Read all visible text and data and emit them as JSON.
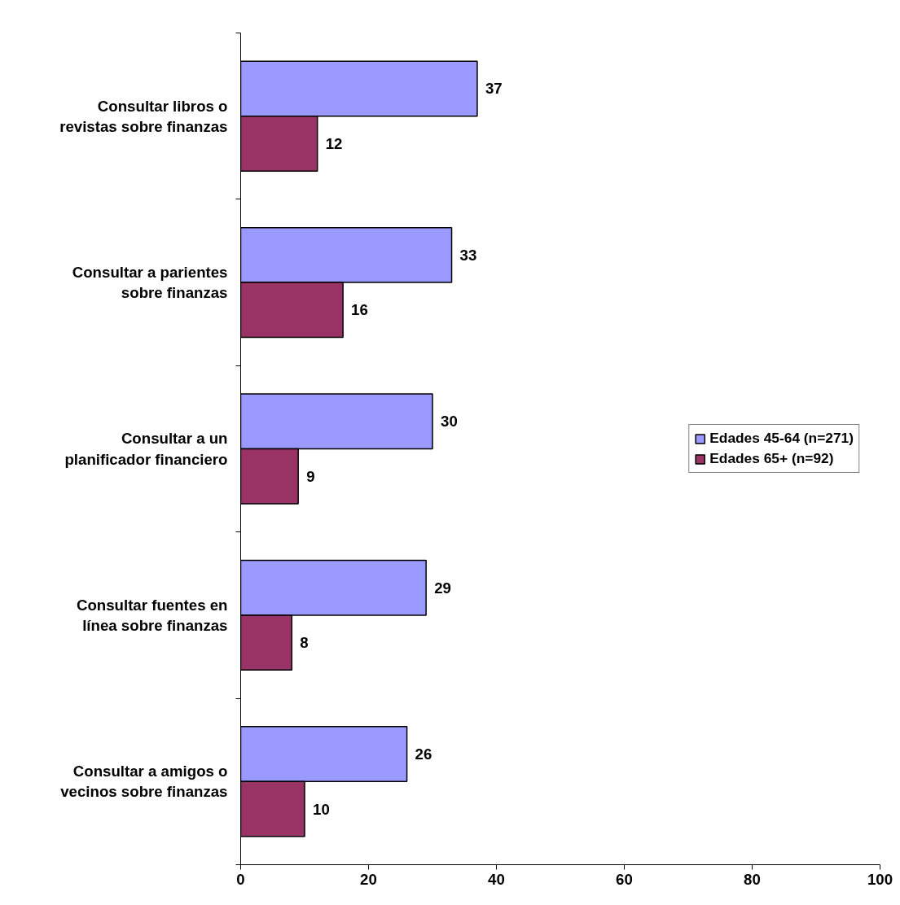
{
  "chart_data": {
    "type": "bar",
    "orientation": "horizontal",
    "categories": [
      "Consultar libros o revistas sobre finanzas",
      "Consultar a parientes sobre finanzas",
      "Consultar a un planificador financiero",
      "Consultar fuentes en línea sobre finanzas",
      "Consultar a amigos o vecinos sobre finanzas"
    ],
    "series": [
      {
        "name": "Edades 45-64 (n=271)",
        "color": "#9999ff",
        "values": [
          37,
          33,
          30,
          29,
          26
        ]
      },
      {
        "name": "Edades 65+ (n=92)",
        "color": "#993366",
        "values": [
          12,
          16,
          9,
          8,
          10
        ]
      }
    ],
    "xlim": [
      0,
      100
    ],
    "xticks": [
      0,
      20,
      40,
      60,
      80,
      100
    ],
    "data_labels": true,
    "legend": "right",
    "grid": false
  }
}
